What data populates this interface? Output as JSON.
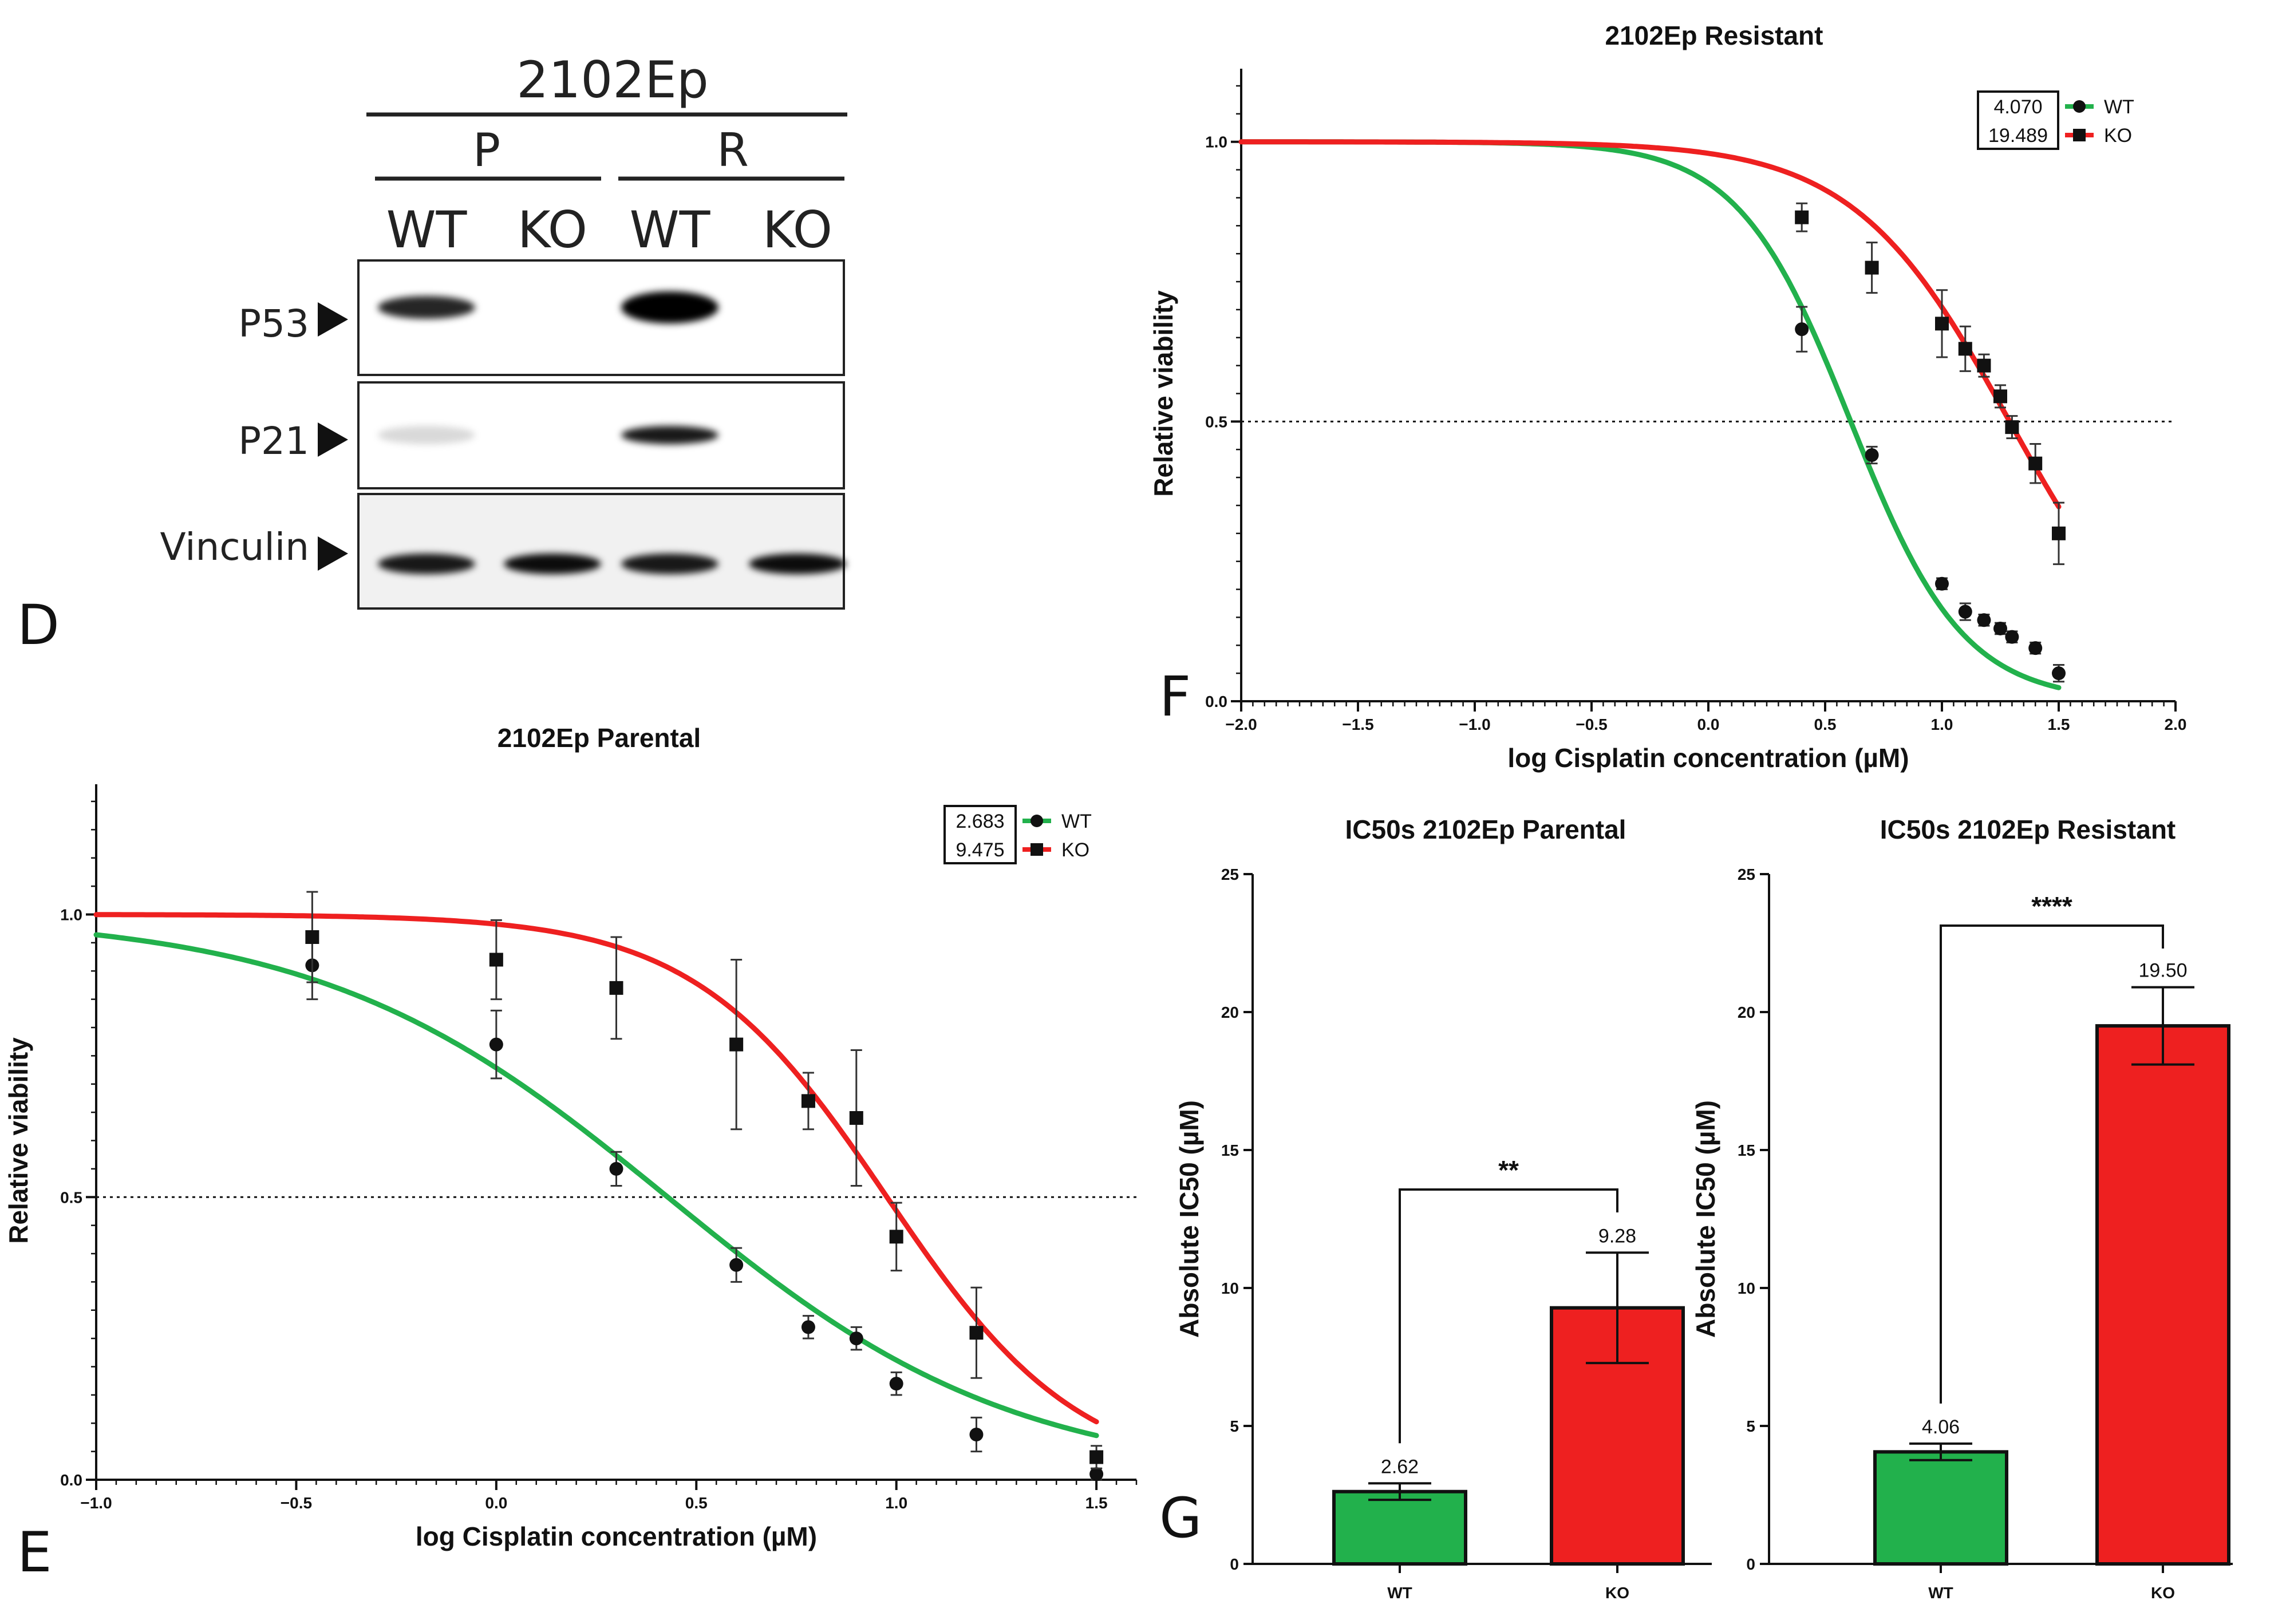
{
  "panels": {
    "D": "D",
    "E": "E",
    "F": "F",
    "G": "G"
  },
  "western_blot": {
    "cell_line": "2102Ep",
    "groups": [
      "P",
      "R"
    ],
    "lanes": [
      "WT",
      "KO",
      "WT",
      "KO"
    ],
    "proteins": [
      "P53",
      "P21",
      "Vinculin"
    ],
    "band_intensity": {
      "P53": [
        0.85,
        0.02,
        1.0,
        0.03
      ],
      "P21": [
        0.15,
        0.02,
        0.9,
        0.04
      ],
      "Vinculin": [
        0.9,
        0.95,
        0.9,
        0.95
      ]
    }
  },
  "colors": {
    "wt": "#22b14c",
    "ko": "#ee2020",
    "axis": "#111111"
  },
  "chart_data": [
    {
      "id": "parental",
      "type": "line",
      "title": "2102Ep Parental",
      "xlabel": "log Cisplatin concentration (µM)",
      "ylabel": "Relative viability",
      "xlim": [
        -1.0,
        1.6
      ],
      "ylim": [
        0,
        1.2
      ],
      "x_ticks": [
        -1.0,
        -0.5,
        0.0,
        0.5,
        1.0,
        1.5
      ],
      "x_tick_labels": [
        "−1.0",
        "−0.5",
        "0.0",
        "0.5",
        "1.0",
        "1.5"
      ],
      "y_ticks": [
        0,
        0.5,
        1.0
      ],
      "y_tick_labels": [
        "0.0",
        "0.5",
        "1.0"
      ],
      "reference_line": 0.5,
      "legend_box": [
        "2.683",
        "9.475"
      ],
      "series": [
        {
          "name": "WT",
          "color": "#22b14c",
          "marker": "circle",
          "ic50": 2.683,
          "hill": 1.0,
          "points": [
            {
              "x": -0.46,
              "y": 0.91,
              "err": 0.06
            },
            {
              "x": 0.0,
              "y": 0.77,
              "err": 0.06
            },
            {
              "x": 0.3,
              "y": 0.55,
              "err": 0.03
            },
            {
              "x": 0.6,
              "y": 0.38,
              "err": 0.03
            },
            {
              "x": 0.78,
              "y": 0.27,
              "err": 0.02
            },
            {
              "x": 0.9,
              "y": 0.25,
              "err": 0.02
            },
            {
              "x": 1.0,
              "y": 0.17,
              "err": 0.02
            },
            {
              "x": 1.2,
              "y": 0.08,
              "err": 0.03
            },
            {
              "x": 1.5,
              "y": 0.01,
              "err": 0.01
            }
          ]
        },
        {
          "name": "KO",
          "color": "#ee2020",
          "marker": "square",
          "ic50": 9.475,
          "hill": 1.8,
          "points": [
            {
              "x": -0.46,
              "y": 0.96,
              "err": 0.08
            },
            {
              "x": 0.0,
              "y": 0.92,
              "err": 0.07
            },
            {
              "x": 0.3,
              "y": 0.87,
              "err": 0.09
            },
            {
              "x": 0.6,
              "y": 0.77,
              "err": 0.15
            },
            {
              "x": 0.78,
              "y": 0.67,
              "err": 0.05
            },
            {
              "x": 0.9,
              "y": 0.64,
              "err": 0.12
            },
            {
              "x": 1.0,
              "y": 0.43,
              "err": 0.06
            },
            {
              "x": 1.2,
              "y": 0.26,
              "err": 0.08
            },
            {
              "x": 1.5,
              "y": 0.04,
              "err": 0.02
            }
          ]
        }
      ]
    },
    {
      "id": "resistant",
      "type": "line",
      "title": "2102Ep Resistant",
      "xlabel": "log Cisplatin concentration (µM)",
      "ylabel": "Relative viability",
      "xlim": [
        -2.0,
        2.0
      ],
      "ylim": [
        0,
        1.1
      ],
      "x_ticks": [
        -2.0,
        -1.5,
        -1.0,
        -0.5,
        0.0,
        0.5,
        1.0,
        1.5,
        2.0
      ],
      "x_tick_labels": [
        "−2.0",
        "−1.5",
        "−1.0",
        "−0.5",
        "0.0",
        "0.5",
        "1.0",
        "1.5",
        "2.0"
      ],
      "y_ticks": [
        0,
        0.5,
        1.0
      ],
      "y_tick_labels": [
        "0.0",
        "0.5",
        "1.0"
      ],
      "reference_line": 0.5,
      "legend_box": [
        "4.070",
        "19.489"
      ],
      "series": [
        {
          "name": "WT",
          "color": "#22b14c",
          "marker": "circle",
          "ic50": 4.07,
          "hill": 1.8,
          "points": [
            {
              "x": 0.4,
              "y": 0.665,
              "err": 0.04
            },
            {
              "x": 0.7,
              "y": 0.44,
              "err": 0.015
            },
            {
              "x": 1.0,
              "y": 0.21,
              "err": 0.01
            },
            {
              "x": 1.1,
              "y": 0.16,
              "err": 0.015
            },
            {
              "x": 1.18,
              "y": 0.145,
              "err": 0.01
            },
            {
              "x": 1.25,
              "y": 0.13,
              "err": 0.01
            },
            {
              "x": 1.3,
              "y": 0.115,
              "err": 0.01
            },
            {
              "x": 1.4,
              "y": 0.095,
              "err": 0.01
            },
            {
              "x": 1.5,
              "y": 0.05,
              "err": 0.015
            }
          ]
        },
        {
          "name": "KO",
          "color": "#ee2020",
          "marker": "square",
          "ic50": 19.489,
          "hill": 1.3,
          "points": [
            {
              "x": 0.4,
              "y": 0.865,
              "err": 0.025
            },
            {
              "x": 0.7,
              "y": 0.775,
              "err": 0.045
            },
            {
              "x": 1.0,
              "y": 0.675,
              "err": 0.06
            },
            {
              "x": 1.1,
              "y": 0.63,
              "err": 0.04
            },
            {
              "x": 1.18,
              "y": 0.6,
              "err": 0.02
            },
            {
              "x": 1.25,
              "y": 0.545,
              "err": 0.02
            },
            {
              "x": 1.3,
              "y": 0.49,
              "err": 0.02
            },
            {
              "x": 1.4,
              "y": 0.425,
              "err": 0.035
            },
            {
              "x": 1.5,
              "y": 0.3,
              "err": 0.055
            }
          ]
        }
      ]
    },
    {
      "id": "ic50-parental",
      "type": "bar",
      "title": "IC50s 2102Ep Parental",
      "xlabel": "",
      "ylabel": "Absolute IC50 (µM)",
      "ylim": [
        0,
        25
      ],
      "y_ticks": [
        0,
        5,
        10,
        15,
        20,
        25
      ],
      "categories": [
        "WT",
        "KO"
      ],
      "values": [
        2.62,
        9.28
      ],
      "value_labels": [
        "2.62",
        "9.28"
      ],
      "errors": [
        0.3,
        2.0
      ],
      "colors": [
        "#22b14c",
        "#ee2020"
      ],
      "significance": "**"
    },
    {
      "id": "ic50-resistant",
      "type": "bar",
      "title": "IC50s 2102Ep Resistant",
      "xlabel": "",
      "ylabel": "Absolute IC50 (µM)",
      "ylim": [
        0,
        25
      ],
      "y_ticks": [
        0,
        5,
        10,
        15,
        20,
        25
      ],
      "categories": [
        "WT",
        "KO"
      ],
      "values": [
        4.06,
        19.5
      ],
      "value_labels": [
        "4.06",
        "19.50"
      ],
      "errors": [
        0.3,
        1.4
      ],
      "colors": [
        "#22b14c",
        "#ee2020"
      ],
      "significance": "****"
    }
  ]
}
